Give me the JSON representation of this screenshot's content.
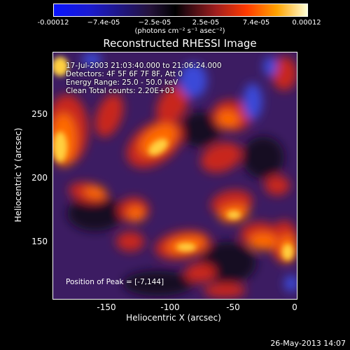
{
  "chart_data": {
    "type": "heatmap",
    "title": "Reconstructed RHESSI Image",
    "xlabel": "Heliocentric X (arcsec)",
    "ylabel": "Heliocentric Y (arcsec)",
    "xlim": [
      -190,
      0
    ],
    "ylim": [
      105,
      298
    ],
    "xticks": [
      "-150",
      "-100",
      "-50",
      "0"
    ],
    "yticks": [
      "150",
      "200",
      "250"
    ],
    "colorbar": {
      "ticks": [
        "-0.00012",
        "−7.4e-05",
        "−2.5e-05",
        "2.5e-05",
        "7.4e-05",
        "0.00012"
      ],
      "units": "(photons cm⁻² s⁻¹ asec⁻²)",
      "range": [
        -0.00012,
        0.00012
      ]
    },
    "annotations": {
      "time": "17-Jul-2003 21:03:40.000 to 21:06:24.000",
      "detectors": "Detectors: 4F 5F 6F 7F 8F, Att 0",
      "energy": "Energy Range: 25.0 - 50.0 keV",
      "clean": "Clean    Total counts: 2.20E+03",
      "peak": "Position of Peak = [-7,144]"
    },
    "peak_position": [
      -7,
      144
    ]
  },
  "footer": {
    "date": "26-May-2013 14:07"
  }
}
